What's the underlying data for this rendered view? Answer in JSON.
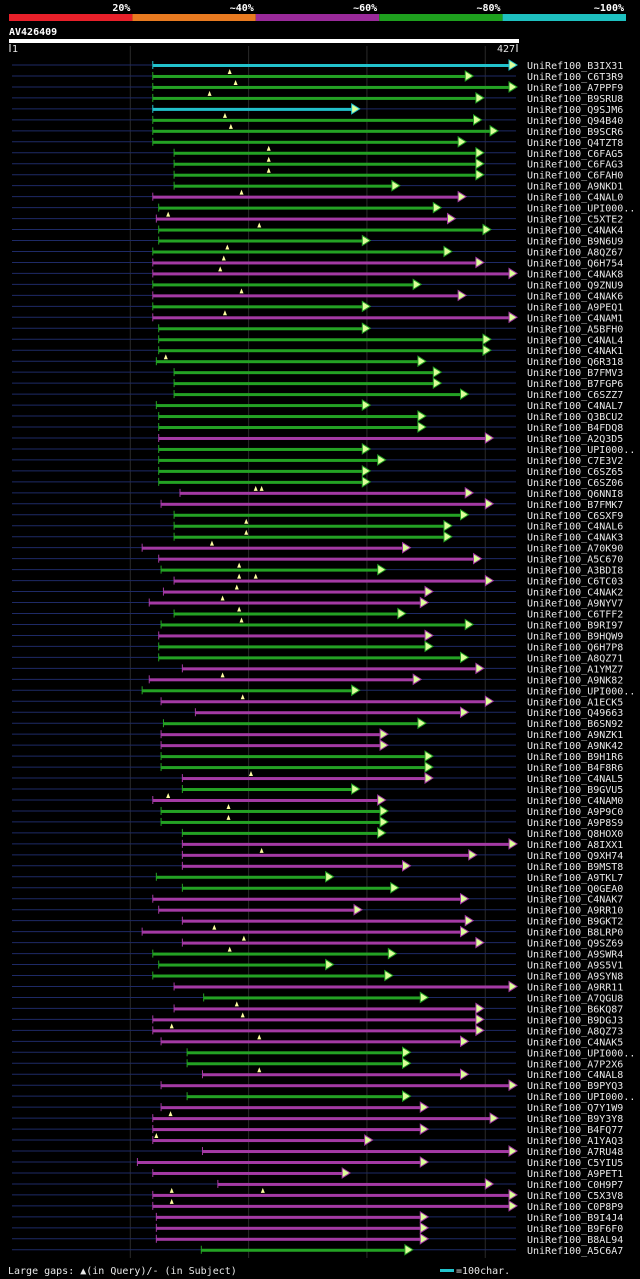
{
  "chart_data": {
    "type": "alignment-overview",
    "title": "AV426409",
    "query_range": [
      1,
      427
    ],
    "ruler_start_label": "1",
    "ruler_end_label": "427",
    "identity_legend": [
      {
        "label": "20%",
        "color": "#e8202a"
      },
      {
        "label": "~40%",
        "color": "#e87a20"
      },
      {
        "label": "~60%",
        "color": "#9a2a9a"
      },
      {
        "label": "~80%",
        "color": "#1ea01e"
      },
      {
        "label": "~100%",
        "color": "#1ec0c0"
      }
    ],
    "footer_left": "Large gaps: ▲(in Query)/- (in Subject)",
    "scale_label": "=100char.",
    "colors": {
      "cyan": "#22c2cc",
      "green": "#24a224",
      "magenta": "#a43aa4",
      "backbone": "#1e2a66",
      "grid": "#2a2a2a"
    },
    "rows": [
      {
        "name": "UniRef100_B3IX31",
        "start": 120,
        "end": 427,
        "cls": "cyan",
        "m": []
      },
      {
        "name": "UniRef100_C6T3R9",
        "start": 120,
        "end": 390,
        "cls": "green",
        "m": [
          185
        ]
      },
      {
        "name": "UniRef100_A7PPF9",
        "start": 120,
        "end": 427,
        "cls": "green",
        "m": [
          190
        ]
      },
      {
        "name": "UniRef100_B9SRU8",
        "start": 120,
        "end": 399,
        "cls": "green",
        "m": [
          168
        ]
      },
      {
        "name": "UniRef100_Q9SJM6",
        "start": 120,
        "end": 294,
        "cls": "cyan",
        "m": []
      },
      {
        "name": "UniRef100_Q94B40",
        "start": 120,
        "end": 397,
        "cls": "green",
        "m": [
          181
        ]
      },
      {
        "name": "UniRef100_B9SCR6",
        "start": 120,
        "end": 411,
        "cls": "green",
        "m": [
          186
        ]
      },
      {
        "name": "UniRef100_Q4TZT8",
        "start": 120,
        "end": 384,
        "cls": "green",
        "m": []
      },
      {
        "name": "UniRef100_C6FAG5",
        "start": 138,
        "end": 399,
        "cls": "green",
        "m": [
          218
        ]
      },
      {
        "name": "UniRef100_C6FAG3",
        "start": 138,
        "end": 399,
        "cls": "green",
        "m": [
          218
        ]
      },
      {
        "name": "UniRef100_C6FAH0",
        "start": 138,
        "end": 399,
        "cls": "green",
        "m": [
          218
        ]
      },
      {
        "name": "UniRef100_A9NKD1",
        "start": 138,
        "end": 328,
        "cls": "green",
        "m": []
      },
      {
        "name": "UniRef100_C4NAL0",
        "start": 120,
        "end": 384,
        "cls": "magenta",
        "m": [
          195
        ]
      },
      {
        "name": "UniRef100_UPI000..",
        "start": 125,
        "end": 363,
        "cls": "green",
        "m": []
      },
      {
        "name": "UniRef100_C5XTE2",
        "start": 123,
        "end": 375,
        "cls": "magenta",
        "m": [
          133
        ]
      },
      {
        "name": "UniRef100_C4NAK4",
        "start": 125,
        "end": 405,
        "cls": "green",
        "m": [
          210
        ]
      },
      {
        "name": "UniRef100_B9N6U9",
        "start": 125,
        "end": 303,
        "cls": "green",
        "m": []
      },
      {
        "name": "UniRef100_A8QZ67",
        "start": 120,
        "end": 372,
        "cls": "green",
        "m": [
          183
        ]
      },
      {
        "name": "UniRef100_Q6H754",
        "start": 120,
        "end": 399,
        "cls": "magenta",
        "m": [
          180
        ]
      },
      {
        "name": "UniRef100_C4NAK8",
        "start": 120,
        "end": 427,
        "cls": "magenta",
        "m": [
          177
        ]
      },
      {
        "name": "UniRef100_Q9ZNU9",
        "start": 120,
        "end": 346,
        "cls": "green",
        "m": []
      },
      {
        "name": "UniRef100_C4NAK6",
        "start": 120,
        "end": 384,
        "cls": "magenta",
        "m": [
          195
        ]
      },
      {
        "name": "UniRef100_A9PEQ1",
        "start": 120,
        "end": 303,
        "cls": "green",
        "m": []
      },
      {
        "name": "UniRef100_C4NAM1",
        "start": 120,
        "end": 427,
        "cls": "magenta",
        "m": [
          181
        ]
      },
      {
        "name": "UniRef100_A5BFH0",
        "start": 125,
        "end": 303,
        "cls": "green",
        "m": []
      },
      {
        "name": "UniRef100_C4NAL4",
        "start": 125,
        "end": 405,
        "cls": "green",
        "m": []
      },
      {
        "name": "UniRef100_C4NAK1",
        "start": 125,
        "end": 405,
        "cls": "green",
        "m": []
      },
      {
        "name": "UniRef100_Q6R318",
        "start": 123,
        "end": 350,
        "cls": "green",
        "m": [
          131
        ]
      },
      {
        "name": "UniRef100_B7FMV3",
        "start": 138,
        "end": 363,
        "cls": "green",
        "m": []
      },
      {
        "name": "UniRef100_B7FGP6",
        "start": 138,
        "end": 363,
        "cls": "green",
        "m": []
      },
      {
        "name": "UniRef100_C6SZZ7",
        "start": 138,
        "end": 386,
        "cls": "green",
        "m": []
      },
      {
        "name": "UniRef100_C4NAL7",
        "start": 123,
        "end": 303,
        "cls": "green",
        "m": []
      },
      {
        "name": "UniRef100_Q3BCU2",
        "start": 125,
        "end": 350,
        "cls": "green",
        "m": []
      },
      {
        "name": "UniRef100_B4FDQ8",
        "start": 125,
        "end": 350,
        "cls": "green",
        "m": []
      },
      {
        "name": "UniRef100_A2Q3D5",
        "start": 125,
        "end": 407,
        "cls": "magenta",
        "m": []
      },
      {
        "name": "UniRef100_UPI000..",
        "start": 125,
        "end": 303,
        "cls": "green",
        "m": []
      },
      {
        "name": "UniRef100_C7E3V2",
        "start": 125,
        "end": 316,
        "cls": "green",
        "m": []
      },
      {
        "name": "UniRef100_C6SZ65",
        "start": 125,
        "end": 303,
        "cls": "green",
        "m": []
      },
      {
        "name": "UniRef100_C6SZ06",
        "start": 125,
        "end": 303,
        "cls": "green",
        "m": []
      },
      {
        "name": "UniRef100_Q6NNI8",
        "start": 143,
        "end": 390,
        "cls": "magenta",
        "m": [
          207,
          212
        ]
      },
      {
        "name": "UniRef100_B7FMK7",
        "start": 127,
        "end": 407,
        "cls": "magenta",
        "m": []
      },
      {
        "name": "UniRef100_C6SXF9",
        "start": 138,
        "end": 386,
        "cls": "green",
        "m": []
      },
      {
        "name": "UniRef100_C4NAL6",
        "start": 138,
        "end": 372,
        "cls": "green",
        "m": [
          199
        ]
      },
      {
        "name": "UniRef100_C4NAK3",
        "start": 138,
        "end": 372,
        "cls": "green",
        "m": [
          199
        ]
      },
      {
        "name": "UniRef100_A70K90",
        "start": 111,
        "end": 337,
        "cls": "magenta",
        "m": [
          170
        ]
      },
      {
        "name": "UniRef100_A5C670",
        "start": 125,
        "end": 397,
        "cls": "magenta",
        "m": []
      },
      {
        "name": "UniRef100_A3BDI8",
        "start": 127,
        "end": 316,
        "cls": "green",
        "m": [
          193
        ]
      },
      {
        "name": "UniRef100_C6TC03",
        "start": 138,
        "end": 407,
        "cls": "magenta",
        "m": [
          193,
          207
        ]
      },
      {
        "name": "UniRef100_C4NAK2",
        "start": 129,
        "end": 356,
        "cls": "magenta",
        "m": [
          191
        ]
      },
      {
        "name": "UniRef100_A9NYV7",
        "start": 117,
        "end": 352,
        "cls": "magenta",
        "m": [
          179
        ]
      },
      {
        "name": "UniRef100_C6TFF2",
        "start": 138,
        "end": 333,
        "cls": "green",
        "m": [
          193
        ]
      },
      {
        "name": "UniRef100_B9RI97",
        "start": 127,
        "end": 390,
        "cls": "green",
        "m": [
          195
        ]
      },
      {
        "name": "UniRef100_B9HQW9",
        "start": 125,
        "end": 356,
        "cls": "magenta",
        "m": []
      },
      {
        "name": "UniRef100_Q6H7P8",
        "start": 125,
        "end": 356,
        "cls": "green",
        "m": []
      },
      {
        "name": "UniRef100_A8QZ71",
        "start": 125,
        "end": 386,
        "cls": "green",
        "m": []
      },
      {
        "name": "UniRef100_A1YMZ7",
        "start": 145,
        "end": 399,
        "cls": "magenta",
        "m": []
      },
      {
        "name": "UniRef100_A9NK82",
        "start": 117,
        "end": 346,
        "cls": "magenta",
        "m": [
          179
        ]
      },
      {
        "name": "UniRef100_UPI000..",
        "start": 111,
        "end": 294,
        "cls": "green",
        "m": []
      },
      {
        "name": "UniRef100_A1ECK5",
        "start": 127,
        "end": 407,
        "cls": "magenta",
        "m": [
          196
        ]
      },
      {
        "name": "UniRef100_Q49663",
        "start": 156,
        "end": 386,
        "cls": "magenta",
        "m": []
      },
      {
        "name": "UniRef100_B6SN92",
        "start": 129,
        "end": 350,
        "cls": "green",
        "m": []
      },
      {
        "name": "UniRef100_A9NZK1",
        "start": 127,
        "end": 318,
        "cls": "magenta",
        "m": []
      },
      {
        "name": "UniRef100_A9NK42",
        "start": 127,
        "end": 318,
        "cls": "magenta",
        "m": []
      },
      {
        "name": "UniRef100_B9H1R6",
        "start": 127,
        "end": 356,
        "cls": "green",
        "m": []
      },
      {
        "name": "UniRef100_B4F8R6",
        "start": 127,
        "end": 356,
        "cls": "green",
        "m": []
      },
      {
        "name": "UniRef100_C4NAL5",
        "start": 145,
        "end": 356,
        "cls": "magenta",
        "m": [
          203
        ]
      },
      {
        "name": "UniRef100_B9GVU5",
        "start": 145,
        "end": 294,
        "cls": "green",
        "m": []
      },
      {
        "name": "UniRef100_C4NAM0",
        "start": 120,
        "end": 316,
        "cls": "magenta",
        "m": [
          133
        ]
      },
      {
        "name": "UniRef100_A9P9C0",
        "start": 127,
        "end": 318,
        "cls": "green",
        "m": [
          184
        ]
      },
      {
        "name": "UniRef100_A9P8S9",
        "start": 127,
        "end": 318,
        "cls": "green",
        "m": [
          184
        ]
      },
      {
        "name": "UniRef100_Q8HOX0",
        "start": 145,
        "end": 316,
        "cls": "green",
        "m": []
      },
      {
        "name": "UniRef100_A8IXX1",
        "start": 145,
        "end": 427,
        "cls": "magenta",
        "m": []
      },
      {
        "name": "UniRef100_Q9XH74",
        "start": 145,
        "end": 393,
        "cls": "magenta",
        "m": [
          212
        ]
      },
      {
        "name": "UniRef100_B9MST8",
        "start": 145,
        "end": 337,
        "cls": "magenta",
        "m": []
      },
      {
        "name": "UniRef100_A9TKL7",
        "start": 123,
        "end": 272,
        "cls": "green",
        "m": []
      },
      {
        "name": "UniRef100_Q0GEA0",
        "start": 145,
        "end": 327,
        "cls": "green",
        "m": []
      },
      {
        "name": "UniRef100_C4NAK7",
        "start": 120,
        "end": 386,
        "cls": "magenta",
        "m": []
      },
      {
        "name": "UniRef100_A9RR10",
        "start": 125,
        "end": 296,
        "cls": "magenta",
        "m": []
      },
      {
        "name": "UniRef100_B9GKT2",
        "start": 145,
        "end": 390,
        "cls": "magenta",
        "m": []
      },
      {
        "name": "UniRef100_B8LRP0",
        "start": 111,
        "end": 386,
        "cls": "magenta",
        "m": [
          172
        ]
      },
      {
        "name": "UniRef100_Q9SZ69",
        "start": 145,
        "end": 399,
        "cls": "magenta",
        "m": [
          197
        ]
      },
      {
        "name": "UniRef100_A9SWR4",
        "start": 120,
        "end": 325,
        "cls": "green",
        "m": [
          185
        ]
      },
      {
        "name": "UniRef100_A9S5V1",
        "start": 125,
        "end": 272,
        "cls": "green",
        "m": []
      },
      {
        "name": "UniRef100_A9SYN8",
        "start": 120,
        "end": 322,
        "cls": "green",
        "m": []
      },
      {
        "name": "UniRef100_A9RR11",
        "start": 138,
        "end": 427,
        "cls": "magenta",
        "m": []
      },
      {
        "name": "UniRef100_A7QGU8",
        "start": 163,
        "end": 352,
        "cls": "green",
        "m": []
      },
      {
        "name": "UniRef100_B6KQ87",
        "start": 138,
        "end": 399,
        "cls": "magenta",
        "m": [
          191
        ]
      },
      {
        "name": "UniRef100_B9DGJ3",
        "start": 120,
        "end": 399,
        "cls": "magenta",
        "m": [
          196
        ]
      },
      {
        "name": "UniRef100_A8QZ73",
        "start": 120,
        "end": 399,
        "cls": "magenta",
        "m": [
          136
        ]
      },
      {
        "name": "UniRef100_C4NAK5",
        "start": 127,
        "end": 386,
        "cls": "magenta",
        "m": [
          210
        ]
      },
      {
        "name": "UniRef100_UPI000..",
        "start": 149,
        "end": 337,
        "cls": "green",
        "m": []
      },
      {
        "name": "UniRef100_A7P2X6",
        "start": 149,
        "end": 337,
        "cls": "green",
        "m": []
      },
      {
        "name": "UniRef100_C4NAL8",
        "start": 162,
        "end": 386,
        "cls": "magenta",
        "m": [
          210
        ]
      },
      {
        "name": "UniRef100_B9PYQ3",
        "start": 127,
        "end": 427,
        "cls": "magenta",
        "m": []
      },
      {
        "name": "UniRef100_UPI000..",
        "start": 149,
        "end": 337,
        "cls": "green",
        "m": []
      },
      {
        "name": "UniRef100_Q7Y1W9",
        "start": 127,
        "end": 352,
        "cls": "magenta",
        "m": []
      },
      {
        "name": "UniRef100_B9Y3Y8",
        "start": 120,
        "end": 411,
        "cls": "magenta",
        "m": [
          135
        ]
      },
      {
        "name": "UniRef100_B4FQ77",
        "start": 120,
        "end": 352,
        "cls": "magenta",
        "m": []
      },
      {
        "name": "UniRef100_A1YAQ3",
        "start": 120,
        "end": 305,
        "cls": "magenta",
        "m": [
          123
        ]
      },
      {
        "name": "UniRef100_A7RU48",
        "start": 162,
        "end": 427,
        "cls": "magenta",
        "m": []
      },
      {
        "name": "UniRef100_C5YIU5",
        "start": 107,
        "end": 352,
        "cls": "magenta",
        "m": []
      },
      {
        "name": "UniRef100_A9PET1",
        "start": 120,
        "end": 286,
        "cls": "magenta",
        "m": []
      },
      {
        "name": "UniRef100_C0H9P7",
        "start": 175,
        "end": 407,
        "cls": "magenta",
        "m": []
      },
      {
        "name": "UniRef100_C5X3V8",
        "start": 120,
        "end": 427,
        "cls": "magenta",
        "m": [
          136,
          213
        ]
      },
      {
        "name": "UniRef100_C0P8P9",
        "start": 120,
        "end": 427,
        "cls": "magenta",
        "m": [
          136
        ]
      },
      {
        "name": "UniRef100_B9I4J4",
        "start": 123,
        "end": 352,
        "cls": "magenta",
        "m": []
      },
      {
        "name": "UniRef100_B9F6F0",
        "start": 123,
        "end": 352,
        "cls": "magenta",
        "m": []
      },
      {
        "name": "UniRef100_B8AL94",
        "start": 123,
        "end": 352,
        "cls": "magenta",
        "m": []
      },
      {
        "name": "UniRef100_A5C6A7",
        "start": 161,
        "end": 339,
        "cls": "green",
        "m": []
      }
    ]
  }
}
